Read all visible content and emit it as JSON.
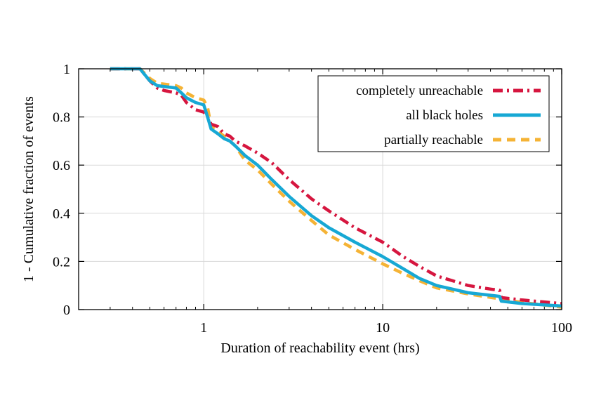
{
  "chart_data": {
    "type": "line",
    "xlabel": "Duration of reachability event (hrs)",
    "ylabel": "1 - Cumulative fraction of events",
    "xscale": "log",
    "xlim": [
      0.2,
      100
    ],
    "ylim": [
      0,
      1
    ],
    "x_ticks": [
      {
        "value": 1,
        "label": "1"
      },
      {
        "value": 10,
        "label": "10"
      },
      {
        "value": 100,
        "label": "100"
      }
    ],
    "y_ticks": [
      {
        "value": 0,
        "label": "0"
      },
      {
        "value": 0.2,
        "label": "0.2"
      },
      {
        "value": 0.4,
        "label": "0.4"
      },
      {
        "value": 0.6,
        "label": "0.6"
      },
      {
        "value": 0.8,
        "label": "0.8"
      },
      {
        "value": 1,
        "label": "1"
      }
    ],
    "grid": true,
    "legend_position": "top-right",
    "series": [
      {
        "name": "completely unreachable",
        "color": "#d6163f",
        "style": "dash-dot",
        "x": [
          0.3,
          0.44,
          0.5,
          0.55,
          0.6,
          0.7,
          0.75,
          0.8,
          0.9,
          1.0,
          1.05,
          1.1,
          1.2,
          1.3,
          1.4,
          1.5,
          1.7,
          2.0,
          2.4,
          3.0,
          4.0,
          5.0,
          7.0,
          10.0,
          13.0,
          16.0,
          20.0,
          30.0,
          40.0,
          45.0,
          46.0,
          60.0,
          100.0
        ],
        "y": [
          1.0,
          1.0,
          0.95,
          0.92,
          0.91,
          0.9,
          0.89,
          0.86,
          0.83,
          0.82,
          0.8,
          0.77,
          0.76,
          0.73,
          0.72,
          0.7,
          0.68,
          0.65,
          0.61,
          0.54,
          0.46,
          0.41,
          0.34,
          0.28,
          0.22,
          0.18,
          0.14,
          0.1,
          0.085,
          0.08,
          0.05,
          0.04,
          0.025
        ]
      },
      {
        "name": "all black holes",
        "color": "#17a8d4",
        "style": "solid",
        "x": [
          0.3,
          0.44,
          0.5,
          0.55,
          0.7,
          0.75,
          0.8,
          0.9,
          1.0,
          1.05,
          1.1,
          1.2,
          1.3,
          1.4,
          1.5,
          1.7,
          2.0,
          2.4,
          3.0,
          4.0,
          5.0,
          7.0,
          10.0,
          13.0,
          16.0,
          20.0,
          30.0,
          45.0,
          46.0,
          60.0,
          100.0
        ],
        "y": [
          1.0,
          1.0,
          0.95,
          0.93,
          0.92,
          0.9,
          0.88,
          0.86,
          0.85,
          0.8,
          0.75,
          0.73,
          0.71,
          0.7,
          0.68,
          0.64,
          0.6,
          0.54,
          0.47,
          0.39,
          0.34,
          0.28,
          0.22,
          0.17,
          0.13,
          0.1,
          0.07,
          0.055,
          0.035,
          0.025,
          0.015
        ]
      },
      {
        "name": "partially reachable",
        "color": "#f5b335",
        "style": "dashed",
        "x": [
          0.3,
          0.44,
          0.5,
          0.55,
          0.7,
          0.75,
          0.8,
          0.9,
          1.0,
          1.05,
          1.1,
          1.2,
          1.3,
          1.4,
          1.5,
          1.7,
          2.0,
          2.4,
          3.0,
          4.0,
          5.0,
          7.0,
          10.0,
          13.0,
          16.0,
          20.0,
          30.0,
          45.0,
          60.0,
          100.0
        ],
        "y": [
          1.0,
          1.0,
          0.96,
          0.94,
          0.93,
          0.92,
          0.9,
          0.88,
          0.87,
          0.84,
          0.76,
          0.74,
          0.72,
          0.7,
          0.68,
          0.62,
          0.58,
          0.52,
          0.45,
          0.37,
          0.31,
          0.25,
          0.19,
          0.15,
          0.12,
          0.09,
          0.065,
          0.045,
          0.03,
          0.01
        ]
      }
    ]
  }
}
